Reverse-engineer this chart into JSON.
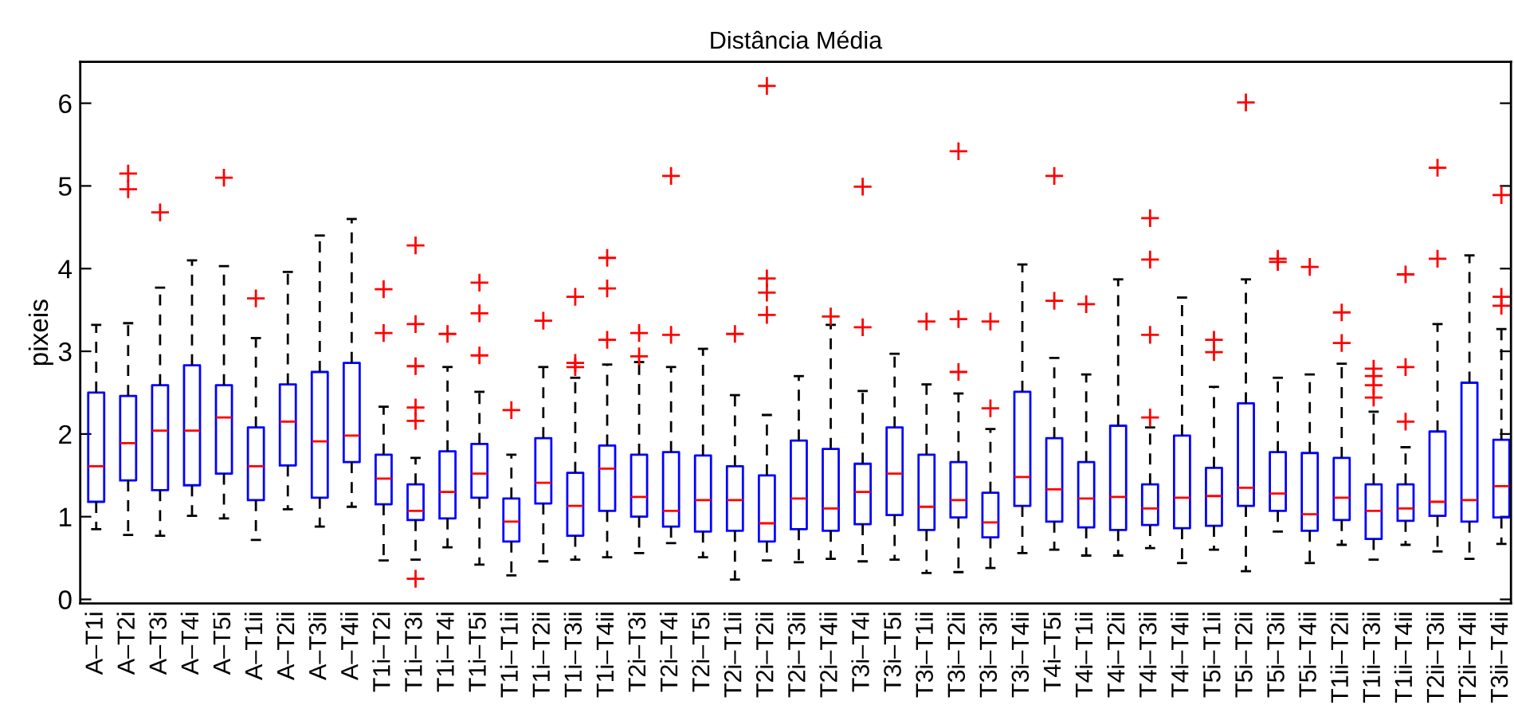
{
  "chart_data": {
    "type": "box",
    "title": "Distância Média",
    "ylabel": "pixeis",
    "categories": [
      "A–T1i",
      "A–T2i",
      "A–T3i",
      "A–T4i",
      "A–T5i",
      "A–T1ii",
      "A–T2ii",
      "A–T3ii",
      "A–T4ii",
      "T1i–T2i",
      "T1i–T3i",
      "T1i–T4i",
      "T1i–T5i",
      "T1i–T1ii",
      "T1i–T2ii",
      "T1i–T3ii",
      "T1i–T4ii",
      "T2i–T3i",
      "T2i–T4i",
      "T2i–T5i",
      "T2i–T1ii",
      "T2i–T2ii",
      "T2i–T3ii",
      "T2i–T4ii",
      "T3i–T4i",
      "T3i–T5i",
      "T3i–T1ii",
      "T3i–T2ii",
      "T3i–T3ii",
      "T3i–T4ii",
      "T4i–T5i",
      "T4i–T1ii",
      "T4i–T2ii",
      "T4i–T3ii",
      "T4i–T4ii",
      "T5i–T1ii",
      "T5i–T2ii",
      "T5i–T3ii",
      "T5i–T4ii",
      "T1ii–T2ii",
      "T1ii–T3ii",
      "T1ii–T4ii",
      "T2ii–T3ii",
      "T2ii–T4ii",
      "T3ii–T4ii"
    ],
    "boxes": [
      {
        "low": 0.85,
        "q1": 1.18,
        "median": 1.61,
        "q3": 2.5,
        "high": 3.32
      },
      {
        "low": 0.78,
        "q1": 1.44,
        "median": 1.89,
        "q3": 2.46,
        "high": 3.34,
        "outliers": [
          5.15,
          4.96
        ]
      },
      {
        "low": 0.77,
        "q1": 1.32,
        "median": 2.04,
        "q3": 2.59,
        "high": 3.77,
        "outliers": [
          4.68
        ]
      },
      {
        "low": 1.01,
        "q1": 1.38,
        "median": 2.04,
        "q3": 2.83,
        "high": 4.1
      },
      {
        "low": 0.98,
        "q1": 1.52,
        "median": 2.2,
        "q3": 2.59,
        "high": 4.03,
        "outliers": [
          5.1
        ]
      },
      {
        "low": 0.72,
        "q1": 1.2,
        "median": 1.61,
        "q3": 2.08,
        "high": 3.16,
        "outliers": [
          3.64
        ]
      },
      {
        "low": 1.09,
        "q1": 1.62,
        "median": 2.15,
        "q3": 2.6,
        "high": 3.96
      },
      {
        "low": 0.88,
        "q1": 1.23,
        "median": 1.91,
        "q3": 2.75,
        "high": 4.4
      },
      {
        "low": 1.12,
        "q1": 1.66,
        "median": 1.98,
        "q3": 2.86,
        "high": 4.6
      },
      {
        "low": 0.47,
        "q1": 1.15,
        "median": 1.46,
        "q3": 1.75,
        "high": 2.33,
        "outliers": [
          3.75,
          3.22
        ]
      },
      {
        "low": 0.48,
        "q1": 0.96,
        "median": 1.07,
        "q3": 1.39,
        "high": 1.71,
        "outliers": [
          4.28,
          3.33,
          2.82,
          2.32,
          2.16,
          0.25
        ]
      },
      {
        "low": 0.63,
        "q1": 0.98,
        "median": 1.3,
        "q3": 1.79,
        "high": 2.81,
        "outliers": [
          3.21
        ]
      },
      {
        "low": 0.42,
        "q1": 1.23,
        "median": 1.52,
        "q3": 1.88,
        "high": 2.51,
        "outliers": [
          3.83,
          3.46,
          2.95
        ]
      },
      {
        "low": 0.29,
        "q1": 0.7,
        "median": 0.94,
        "q3": 1.22,
        "high": 1.75,
        "outliers": [
          2.29
        ]
      },
      {
        "low": 0.46,
        "q1": 1.16,
        "median": 1.41,
        "q3": 1.95,
        "high": 2.81,
        "outliers": [
          3.37
        ]
      },
      {
        "low": 0.48,
        "q1": 0.77,
        "median": 1.13,
        "q3": 1.53,
        "high": 2.68,
        "outliers": [
          3.66,
          2.86,
          2.81
        ]
      },
      {
        "low": 0.51,
        "q1": 1.07,
        "median": 1.58,
        "q3": 1.86,
        "high": 2.84,
        "outliers": [
          4.13,
          3.76,
          3.14
        ]
      },
      {
        "low": 0.56,
        "q1": 1.0,
        "median": 1.24,
        "q3": 1.75,
        "high": 2.87,
        "outliers": [
          3.22,
          2.94
        ]
      },
      {
        "low": 0.68,
        "q1": 0.88,
        "median": 1.07,
        "q3": 1.78,
        "high": 2.81,
        "outliers": [
          5.12,
          3.2
        ]
      },
      {
        "low": 0.51,
        "q1": 0.82,
        "median": 1.2,
        "q3": 1.74,
        "high": 3.03
      },
      {
        "low": 0.24,
        "q1": 0.83,
        "median": 1.2,
        "q3": 1.61,
        "high": 2.47,
        "outliers": [
          3.21
        ]
      },
      {
        "low": 0.47,
        "q1": 0.7,
        "median": 0.92,
        "q3": 1.5,
        "high": 2.23,
        "outliers": [
          6.21,
          3.88,
          3.71,
          3.44
        ]
      },
      {
        "low": 0.45,
        "q1": 0.85,
        "median": 1.22,
        "q3": 1.92,
        "high": 2.7
      },
      {
        "low": 0.49,
        "q1": 0.83,
        "median": 1.1,
        "q3": 1.82,
        "high": 3.32,
        "outliers": [
          3.42
        ]
      },
      {
        "low": 0.46,
        "q1": 0.91,
        "median": 1.3,
        "q3": 1.64,
        "high": 2.52,
        "outliers": [
          4.99,
          3.29
        ]
      },
      {
        "low": 0.48,
        "q1": 1.02,
        "median": 1.52,
        "q3": 2.08,
        "high": 2.97
      },
      {
        "low": 0.32,
        "q1": 0.84,
        "median": 1.12,
        "q3": 1.75,
        "high": 2.6,
        "outliers": [
          3.36
        ]
      },
      {
        "low": 0.33,
        "q1": 0.99,
        "median": 1.2,
        "q3": 1.66,
        "high": 2.49,
        "outliers": [
          5.42,
          3.39,
          2.75
        ]
      },
      {
        "low": 0.38,
        "q1": 0.75,
        "median": 0.93,
        "q3": 1.29,
        "high": 2.06,
        "outliers": [
          3.36,
          2.31
        ]
      },
      {
        "low": 0.56,
        "q1": 1.13,
        "median": 1.48,
        "q3": 2.51,
        "high": 4.05
      },
      {
        "low": 0.6,
        "q1": 0.94,
        "median": 1.33,
        "q3": 1.95,
        "high": 2.92,
        "outliers": [
          5.12,
          3.61
        ]
      },
      {
        "low": 0.53,
        "q1": 0.87,
        "median": 1.22,
        "q3": 1.66,
        "high": 2.72,
        "outliers": [
          3.57
        ]
      },
      {
        "low": 0.53,
        "q1": 0.84,
        "median": 1.24,
        "q3": 2.1,
        "high": 3.87
      },
      {
        "low": 0.62,
        "q1": 0.9,
        "median": 1.1,
        "q3": 1.39,
        "high": 2.08,
        "outliers": [
          4.61,
          4.11,
          3.2,
          2.2
        ]
      },
      {
        "low": 0.44,
        "q1": 0.86,
        "median": 1.23,
        "q3": 1.98,
        "high": 3.65
      },
      {
        "low": 0.6,
        "q1": 0.89,
        "median": 1.25,
        "q3": 1.59,
        "high": 2.57,
        "outliers": [
          3.14,
          2.99
        ]
      },
      {
        "low": 0.34,
        "q1": 1.13,
        "median": 1.35,
        "q3": 2.37,
        "high": 3.87,
        "outliers": [
          6.01
        ]
      },
      {
        "low": 0.82,
        "q1": 1.07,
        "median": 1.28,
        "q3": 1.78,
        "high": 2.68,
        "outliers": [
          4.12,
          4.08
        ]
      },
      {
        "low": 0.44,
        "q1": 0.83,
        "median": 1.03,
        "q3": 1.77,
        "high": 2.72,
        "outliers": [
          4.02
        ]
      },
      {
        "low": 0.66,
        "q1": 0.96,
        "median": 1.23,
        "q3": 1.71,
        "high": 2.85,
        "outliers": [
          3.47,
          3.1
        ]
      },
      {
        "low": 0.48,
        "q1": 0.73,
        "median": 1.07,
        "q3": 1.39,
        "high": 2.27,
        "outliers": [
          2.79,
          2.7,
          2.59,
          2.44
        ]
      },
      {
        "low": 0.66,
        "q1": 0.95,
        "median": 1.1,
        "q3": 1.39,
        "high": 1.84,
        "outliers": [
          3.93,
          2.81,
          2.15
        ]
      },
      {
        "low": 0.58,
        "q1": 1.01,
        "median": 1.18,
        "q3": 2.03,
        "high": 3.33,
        "outliers": [
          5.22,
          4.12
        ]
      },
      {
        "low": 0.49,
        "q1": 0.94,
        "median": 1.2,
        "q3": 2.62,
        "high": 4.16
      },
      {
        "low": 0.67,
        "q1": 0.99,
        "median": 1.37,
        "q3": 1.93,
        "high": 3.27,
        "outliers": [
          4.89,
          3.66,
          3.55
        ]
      }
    ],
    "color": "#0000ff",
    "line_style": "dashed",
    "marker": "cross",
    "ylim": [
      -0.05,
      6.5
    ],
    "yticks": [
      0,
      1,
      2,
      3,
      4,
      5,
      6
    ],
    "grid": false,
    "legend": false
  }
}
